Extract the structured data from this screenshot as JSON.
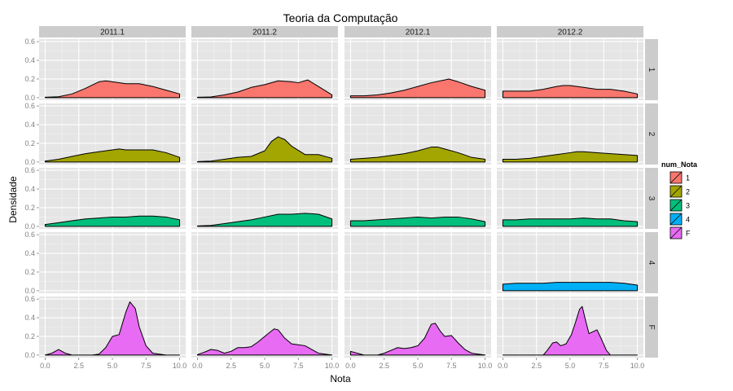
{
  "chart_data": {
    "type": "area",
    "title": "Teoria da Computação",
    "xlabel": "Nota",
    "ylabel": "Densidade",
    "xlim": [
      0,
      10
    ],
    "ylim": [
      0,
      0.6
    ],
    "x_ticks": [
      "0.0",
      "2.5",
      "5.0",
      "7.5",
      "10.0"
    ],
    "y_ticks": [
      "0.0",
      "0.2",
      "0.4",
      "0.6"
    ],
    "columns": [
      "2011.1",
      "2011.2",
      "2012.1",
      "2012.2"
    ],
    "rows": [
      "1",
      "2",
      "3",
      "4",
      "F"
    ],
    "legend": {
      "title": "num_Nota",
      "position": "right",
      "items": [
        {
          "label": "1",
          "color": "#F8766D"
        },
        {
          "label": "2",
          "color": "#A3A500"
        },
        {
          "label": "3",
          "color": "#00BF7D"
        },
        {
          "label": "4",
          "color": "#00B0F6"
        },
        {
          "label": "F",
          "color": "#E76BF3"
        }
      ]
    },
    "grid": true,
    "panels": [
      {
        "row": "1",
        "col": "2011.1",
        "color": "#F8766D",
        "points": [
          [
            0,
            0.005
          ],
          [
            1,
            0.01
          ],
          [
            2,
            0.04
          ],
          [
            3,
            0.1
          ],
          [
            4,
            0.17
          ],
          [
            4.5,
            0.18
          ],
          [
            5,
            0.17
          ],
          [
            6,
            0.15
          ],
          [
            7,
            0.15
          ],
          [
            8,
            0.12
          ],
          [
            9,
            0.08
          ],
          [
            10,
            0.04
          ]
        ]
      },
      {
        "row": "1",
        "col": "2011.2",
        "color": "#F8766D",
        "points": [
          [
            0,
            0.005
          ],
          [
            1,
            0.008
          ],
          [
            2,
            0.03
          ],
          [
            3,
            0.06
          ],
          [
            4,
            0.11
          ],
          [
            5,
            0.14
          ],
          [
            6,
            0.18
          ],
          [
            7,
            0.17
          ],
          [
            7.5,
            0.16
          ],
          [
            8.2,
            0.19
          ],
          [
            9,
            0.12
          ],
          [
            10,
            0.03
          ]
        ]
      },
      {
        "row": "1",
        "col": "2012.1",
        "color": "#F8766D",
        "points": [
          [
            0,
            0.02
          ],
          [
            1,
            0.02
          ],
          [
            2,
            0.03
          ],
          [
            3,
            0.05
          ],
          [
            4,
            0.08
          ],
          [
            5,
            0.12
          ],
          [
            6,
            0.16
          ],
          [
            7,
            0.19
          ],
          [
            7.3,
            0.2
          ],
          [
            8,
            0.17
          ],
          [
            9,
            0.12
          ],
          [
            10,
            0.08
          ]
        ]
      },
      {
        "row": "1",
        "col": "2012.2",
        "color": "#F8766D",
        "points": [
          [
            0,
            0.07
          ],
          [
            1,
            0.07
          ],
          [
            2,
            0.07
          ],
          [
            3,
            0.09
          ],
          [
            4,
            0.12
          ],
          [
            4.5,
            0.13
          ],
          [
            5,
            0.13
          ],
          [
            6,
            0.11
          ],
          [
            7,
            0.09
          ],
          [
            8,
            0.09
          ],
          [
            9,
            0.07
          ],
          [
            10,
            0.04
          ]
        ]
      },
      {
        "row": "2",
        "col": "2011.1",
        "color": "#A3A500",
        "points": [
          [
            0,
            0.01
          ],
          [
            1,
            0.03
          ],
          [
            2,
            0.06
          ],
          [
            3,
            0.09
          ],
          [
            4,
            0.11
          ],
          [
            5,
            0.13
          ],
          [
            5.5,
            0.14
          ],
          [
            6,
            0.13
          ],
          [
            7,
            0.13
          ],
          [
            8,
            0.13
          ],
          [
            9,
            0.1
          ],
          [
            10,
            0.05
          ]
        ]
      },
      {
        "row": "2",
        "col": "2011.2",
        "color": "#A3A500",
        "points": [
          [
            0,
            0.005
          ],
          [
            1,
            0.01
          ],
          [
            2,
            0.03
          ],
          [
            3,
            0.05
          ],
          [
            4,
            0.06
          ],
          [
            5,
            0.12
          ],
          [
            5.5,
            0.22
          ],
          [
            6,
            0.27
          ],
          [
            6.5,
            0.24
          ],
          [
            7,
            0.17
          ],
          [
            8,
            0.08
          ],
          [
            9,
            0.08
          ],
          [
            10,
            0.04
          ]
        ]
      },
      {
        "row": "2",
        "col": "2012.1",
        "color": "#A3A500",
        "points": [
          [
            0,
            0.03
          ],
          [
            1,
            0.04
          ],
          [
            2,
            0.05
          ],
          [
            3,
            0.07
          ],
          [
            4,
            0.09
          ],
          [
            5,
            0.12
          ],
          [
            6,
            0.16
          ],
          [
            6.5,
            0.16
          ],
          [
            7,
            0.14
          ],
          [
            8,
            0.1
          ],
          [
            9,
            0.05
          ],
          [
            10,
            0.03
          ]
        ]
      },
      {
        "row": "2",
        "col": "2012.2",
        "color": "#A3A500",
        "points": [
          [
            0,
            0.03
          ],
          [
            1,
            0.03
          ],
          [
            2,
            0.04
          ],
          [
            3,
            0.06
          ],
          [
            4,
            0.08
          ],
          [
            5,
            0.1
          ],
          [
            5.5,
            0.11
          ],
          [
            6,
            0.11
          ],
          [
            7,
            0.1
          ],
          [
            8,
            0.09
          ],
          [
            9,
            0.08
          ],
          [
            10,
            0.07
          ]
        ]
      },
      {
        "row": "3",
        "col": "2011.1",
        "color": "#00BF7D",
        "points": [
          [
            0,
            0.02
          ],
          [
            1,
            0.04
          ],
          [
            2,
            0.06
          ],
          [
            3,
            0.08
          ],
          [
            4,
            0.09
          ],
          [
            5,
            0.1
          ],
          [
            6,
            0.1
          ],
          [
            7,
            0.11
          ],
          [
            7.5,
            0.11
          ],
          [
            8,
            0.11
          ],
          [
            9,
            0.1
          ],
          [
            10,
            0.07
          ]
        ]
      },
      {
        "row": "3",
        "col": "2011.2",
        "color": "#00BF7D",
        "points": [
          [
            0,
            0.005
          ],
          [
            1,
            0.01
          ],
          [
            2,
            0.03
          ],
          [
            3,
            0.05
          ],
          [
            4,
            0.07
          ],
          [
            5,
            0.1
          ],
          [
            6,
            0.13
          ],
          [
            7,
            0.13
          ],
          [
            8,
            0.14
          ],
          [
            9,
            0.13
          ],
          [
            10,
            0.08
          ]
        ]
      },
      {
        "row": "3",
        "col": "2012.1",
        "color": "#00BF7D",
        "points": [
          [
            0,
            0.06
          ],
          [
            1,
            0.06
          ],
          [
            2,
            0.07
          ],
          [
            3,
            0.08
          ],
          [
            4,
            0.09
          ],
          [
            5,
            0.1
          ],
          [
            6,
            0.09
          ],
          [
            7,
            0.1
          ],
          [
            8,
            0.1
          ],
          [
            9,
            0.08
          ],
          [
            10,
            0.05
          ]
        ]
      },
      {
        "row": "3",
        "col": "2012.2",
        "color": "#00BF7D",
        "points": [
          [
            0,
            0.07
          ],
          [
            1,
            0.07
          ],
          [
            2,
            0.08
          ],
          [
            3,
            0.08
          ],
          [
            4,
            0.08
          ],
          [
            5,
            0.08
          ],
          [
            6,
            0.09
          ],
          [
            7,
            0.08
          ],
          [
            8,
            0.08
          ],
          [
            9,
            0.06
          ],
          [
            10,
            0.05
          ]
        ]
      },
      {
        "row": "4",
        "col": "2012.2",
        "color": "#00B0F6",
        "points": [
          [
            0,
            0.07
          ],
          [
            1,
            0.08
          ],
          [
            2,
            0.08
          ],
          [
            3,
            0.08
          ],
          [
            4,
            0.09
          ],
          [
            5,
            0.09
          ],
          [
            6,
            0.09
          ],
          [
            7,
            0.09
          ],
          [
            8,
            0.09
          ],
          [
            9,
            0.08
          ],
          [
            10,
            0.06
          ]
        ]
      },
      {
        "row": "F",
        "col": "2011.1",
        "color": "#E76BF3",
        "points": [
          [
            0,
            0.0
          ],
          [
            0.5,
            0.02
          ],
          [
            1,
            0.06
          ],
          [
            1.5,
            0.02
          ],
          [
            2,
            0.0
          ],
          [
            3.5,
            0.0
          ],
          [
            4,
            0.01
          ],
          [
            4.5,
            0.08
          ],
          [
            5,
            0.2
          ],
          [
            5.5,
            0.22
          ],
          [
            6,
            0.46
          ],
          [
            6.3,
            0.57
          ],
          [
            6.7,
            0.5
          ],
          [
            7,
            0.3
          ],
          [
            7.5,
            0.1
          ],
          [
            8,
            0.02
          ],
          [
            9,
            0.0
          ],
          [
            10,
            0.0
          ]
        ]
      },
      {
        "row": "F",
        "col": "2011.2",
        "color": "#E76BF3",
        "points": [
          [
            0,
            0.005
          ],
          [
            0.5,
            0.03
          ],
          [
            1,
            0.06
          ],
          [
            1.5,
            0.05
          ],
          [
            2,
            0.02
          ],
          [
            2.5,
            0.04
          ],
          [
            3,
            0.08
          ],
          [
            3.5,
            0.08
          ],
          [
            4,
            0.09
          ],
          [
            4.5,
            0.14
          ],
          [
            5,
            0.2
          ],
          [
            5.7,
            0.28
          ],
          [
            6,
            0.27
          ],
          [
            6.5,
            0.18
          ],
          [
            7,
            0.12
          ],
          [
            7.5,
            0.11
          ],
          [
            8,
            0.1
          ],
          [
            8.5,
            0.06
          ],
          [
            9,
            0.02
          ],
          [
            10,
            0.0
          ]
        ]
      },
      {
        "row": "F",
        "col": "2012.1",
        "color": "#E76BF3",
        "points": [
          [
            0,
            0.04
          ],
          [
            0.5,
            0.02
          ],
          [
            1,
            0.0
          ],
          [
            2,
            0.0
          ],
          [
            2.5,
            0.02
          ],
          [
            3,
            0.05
          ],
          [
            3.5,
            0.08
          ],
          [
            4,
            0.07
          ],
          [
            4.5,
            0.08
          ],
          [
            5,
            0.1
          ],
          [
            5.5,
            0.18
          ],
          [
            6,
            0.33
          ],
          [
            6.3,
            0.34
          ],
          [
            6.7,
            0.25
          ],
          [
            7,
            0.2
          ],
          [
            7.5,
            0.21
          ],
          [
            8,
            0.13
          ],
          [
            8.5,
            0.06
          ],
          [
            9,
            0.02
          ],
          [
            10,
            0.0
          ]
        ]
      },
      {
        "row": "F",
        "col": "2012.2",
        "color": "#E76BF3",
        "points": [
          [
            0,
            0.0
          ],
          [
            3,
            0.0
          ],
          [
            3.3,
            0.05
          ],
          [
            3.7,
            0.13
          ],
          [
            4,
            0.14
          ],
          [
            4.3,
            0.1
          ],
          [
            4.7,
            0.12
          ],
          [
            5.1,
            0.22
          ],
          [
            5.4,
            0.35
          ],
          [
            5.7,
            0.49
          ],
          [
            5.9,
            0.52
          ],
          [
            6.1,
            0.4
          ],
          [
            6.4,
            0.23
          ],
          [
            6.7,
            0.25
          ],
          [
            7,
            0.27
          ],
          [
            7.3,
            0.18
          ],
          [
            7.7,
            0.05
          ],
          [
            8,
            0.0
          ],
          [
            10,
            0.0
          ]
        ]
      }
    ]
  }
}
